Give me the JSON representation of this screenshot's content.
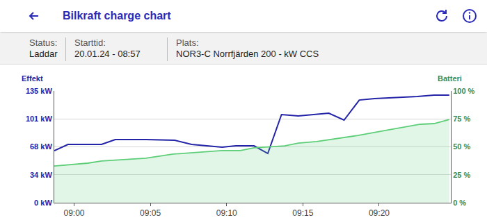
{
  "header": {
    "title": "Bilkraft charge chart"
  },
  "info": [
    {
      "label": "Status:",
      "value": "Laddar"
    },
    {
      "label": "Starttid:",
      "value": "20.01.24 - 08:57"
    },
    {
      "label": "Plats:",
      "value": "NOR3-C Norrfjärden 200 - kW CCS"
    }
  ],
  "chart_data": {
    "type": "line",
    "grid": true,
    "xlim": [
      538.7,
      564.7
    ],
    "xticks": [
      {
        "value": 540,
        "label": "09:00"
      },
      {
        "value": 545,
        "label": "09:05"
      },
      {
        "value": 550,
        "label": "09:10"
      },
      {
        "value": 555,
        "label": "09:15"
      },
      {
        "value": 560,
        "label": "09:20"
      }
    ],
    "ylim": [
      0,
      135
    ],
    "yticks": [
      {
        "value": 0,
        "label": "0 kW"
      },
      {
        "value": 33.75,
        "label": "34 kW"
      },
      {
        "value": 67.5,
        "label": "68 kW"
      },
      {
        "value": 101.25,
        "label": "101 kW"
      },
      {
        "value": 135,
        "label": "135 kW"
      }
    ],
    "y2lim": [
      0,
      100
    ],
    "y2ticks": [
      {
        "value": 0,
        "label": "0 %"
      },
      {
        "value": 25,
        "label": "25 %"
      },
      {
        "value": 50,
        "label": "50 %"
      },
      {
        "value": 75,
        "label": "75 %"
      },
      {
        "value": 100,
        "label": "100 %"
      }
    ],
    "series": [
      {
        "name": "Batteri",
        "color": "#5cce78",
        "type": "area",
        "axis": "y2",
        "x": [
          538.7,
          540.9,
          541.8,
          544.7,
          546.5,
          549.7,
          550.9,
          551.8,
          553.8,
          554.7,
          555.9,
          558.6,
          560.6,
          562.7,
          563.6,
          564.6
        ],
        "values": [
          32.9,
          35.4,
          37.3,
          39.8,
          43.5,
          46.6,
          46.6,
          49.1,
          50.9,
          53.4,
          54.7,
          60.2,
          65.2,
          70.2,
          70.8,
          74.5
        ]
      },
      {
        "name": "Effekt",
        "color": "#2323a8",
        "type": "line",
        "x": [
          538.7,
          539.6,
          541.8,
          542.7,
          544.7,
          546.6,
          547.7,
          549.7,
          550.6,
          551.8,
          552.7,
          553.6,
          554.7,
          556.7,
          557.7,
          558.7,
          559.7,
          560.8,
          562.5,
          563.6,
          564.6
        ],
        "values": [
          62.9,
          70.4,
          70.4,
          76.3,
          76.3,
          75.4,
          70.4,
          67.0,
          68.7,
          68.7,
          59.5,
          106.5,
          104.8,
          108.1,
          99.8,
          124.0,
          125.7,
          126.6,
          128.2,
          130.0,
          130.0
        ]
      }
    ]
  }
}
